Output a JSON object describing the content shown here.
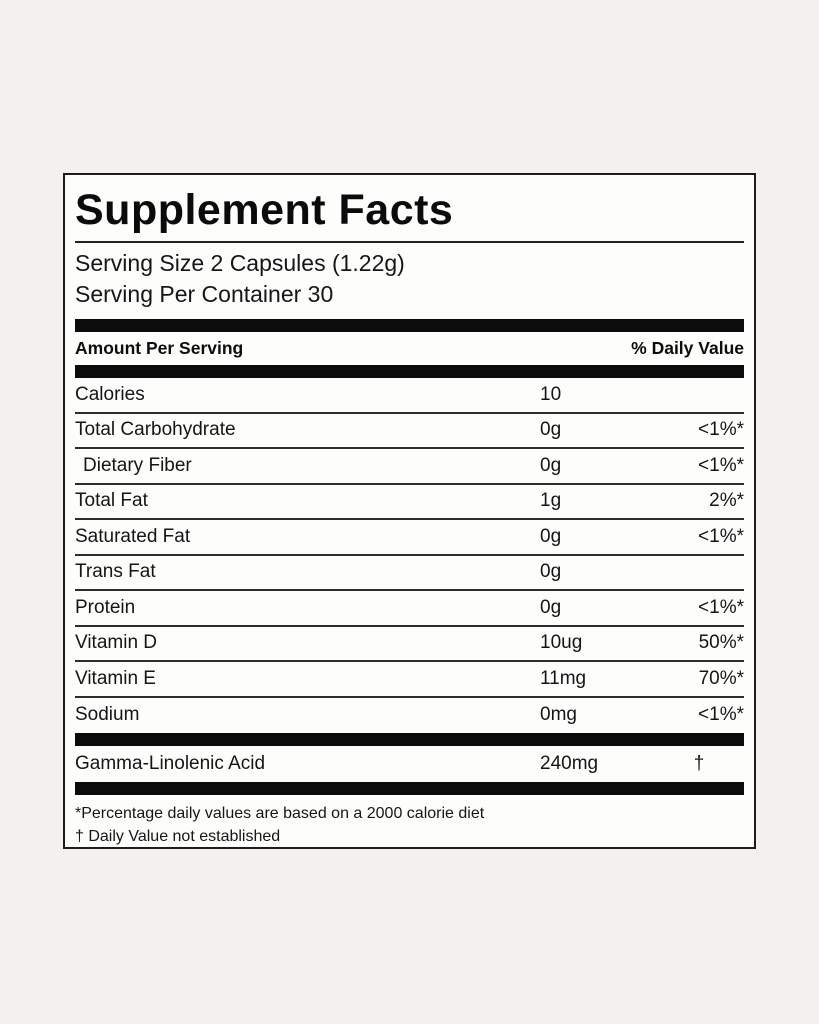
{
  "label": {
    "title": "Supplement Facts",
    "serving_size": "Serving Size 2 Capsules (1.22g)",
    "servings_per_container": "Serving Per Container 30",
    "header": {
      "amount_per_serving": "Amount Per Serving",
      "daily_value": "% Daily Value"
    },
    "rows": [
      {
        "name": "Calories",
        "amount": "10",
        "dv": ""
      },
      {
        "name": "Total Carbohydrate",
        "amount": "0g",
        "dv": "<1%*"
      },
      {
        "name": "Dietary Fiber",
        "amount": "0g",
        "dv": "<1%*"
      },
      {
        "name": "Total Fat",
        "amount": "1g",
        "dv": "2%*"
      },
      {
        "name": "Saturated Fat",
        "amount": "0g",
        "dv": "<1%*"
      },
      {
        "name": "Trans Fat",
        "amount": "0g",
        "dv": ""
      },
      {
        "name": "Protein",
        "amount": "0g",
        "dv": "<1%*"
      },
      {
        "name": "Vitamin D",
        "amount": "10ug",
        "dv": "50%*"
      },
      {
        "name": "Vitamin E",
        "amount": "11mg",
        "dv": "70%*"
      },
      {
        "name": "Sodium",
        "amount": "0mg",
        "dv": "<1%*"
      }
    ],
    "special_row": {
      "name": "Gamma-Linolenic Acid",
      "amount": "240mg",
      "dv": "†"
    },
    "footnotes": {
      "percent": "*Percentage daily values are based on a 2000 calorie diet",
      "dagger": "† Daily Value not established"
    },
    "colors": {
      "background": "#f2f1ef",
      "panel": "#fdfdfc",
      "ink": "#111111"
    }
  }
}
